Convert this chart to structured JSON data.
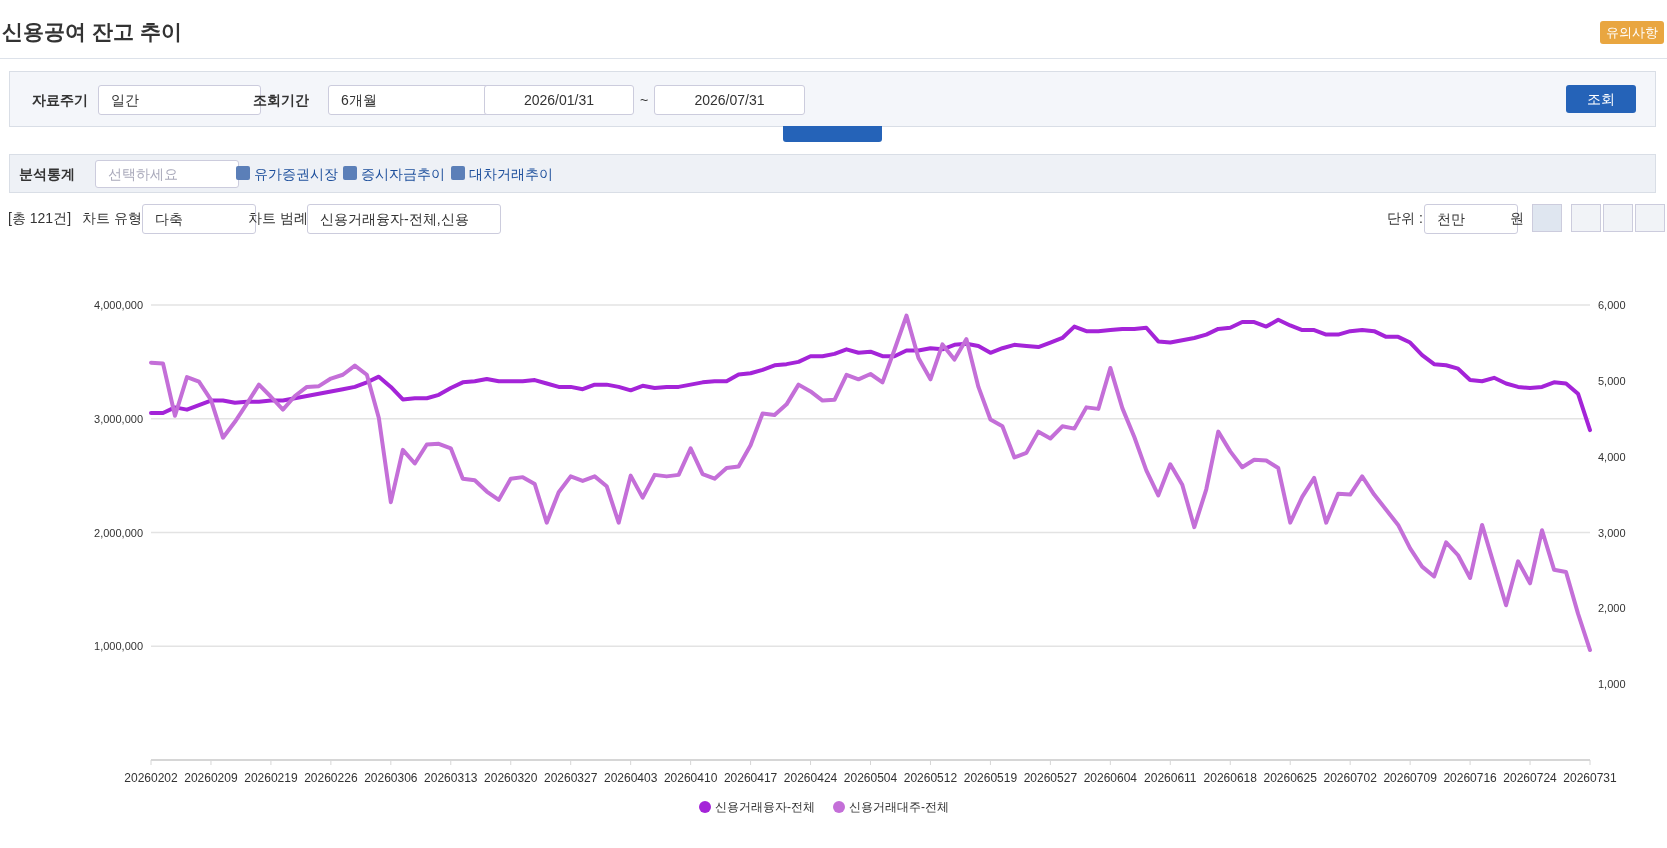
{
  "chart_data": {
    "type": "line",
    "title": "신용공여 잔고 추이",
    "annotations": [
      "유의사항",
      "자료주기",
      "일간",
      "조회기간",
      "6개월",
      "2026/01/31",
      "~",
      "2026/07/31",
      "조회",
      "분석통계",
      "선택하세요",
      "유가증권시장",
      "증시자금추이",
      "대차거래추이",
      "[총 121건]",
      "차트 유형",
      "다축",
      "차트 범례",
      "신용거래융자-전체,신용",
      "단위 :",
      "천만",
      "원"
    ],
    "categories": [
      "20260202",
      null,
      null,
      null,
      null,
      "20260209",
      null,
      null,
      null,
      null,
      "20260219",
      null,
      null,
      null,
      null,
      "20260226",
      null,
      null,
      null,
      null,
      "20260306",
      null,
      null,
      null,
      null,
      "20260313",
      null,
      null,
      null,
      null,
      "20260320",
      null,
      null,
      null,
      null,
      "20260327",
      null,
      null,
      null,
      null,
      "20260403",
      null,
      null,
      null,
      null,
      "20260410",
      null,
      null,
      null,
      null,
      "20260417",
      null,
      null,
      null,
      null,
      "20260424",
      null,
      null,
      null,
      null,
      "20260504",
      null,
      null,
      null,
      null,
      "20260512",
      null,
      null,
      null,
      null,
      "20260519",
      null,
      null,
      null,
      null,
      "20260527",
      null,
      null,
      null,
      null,
      "20260604",
      null,
      null,
      null,
      null,
      "20260611",
      null,
      null,
      null,
      null,
      "20260618",
      null,
      null,
      null,
      null,
      "20260625",
      null,
      null,
      null,
      null,
      "20260702",
      null,
      null,
      null,
      null,
      "20260709",
      null,
      null,
      null,
      null,
      "20260716",
      null,
      null,
      null,
      null,
      "20260724",
      null,
      null,
      null,
      null,
      "20260731"
    ],
    "series": [
      {
        "name": "신용거래융자-전체",
        "color": "#a424d8",
        "values": [
          3050000,
          3050000,
          3100000,
          3080000,
          3120000,
          3160000,
          3160000,
          3140000,
          3150000,
          3150000,
          3160000,
          3160000,
          3180000,
          3200000,
          3220000,
          3240000,
          3260000,
          3280000,
          3320000,
          3370000,
          3280000,
          3170000,
          3180000,
          3180000,
          3210000,
          3270000,
          3320000,
          3330000,
          3350000,
          3330000,
          3330000,
          3330000,
          3340000,
          3310000,
          3280000,
          3280000,
          3260000,
          3300000,
          3300000,
          3280000,
          3250000,
          3290000,
          3270000,
          3280000,
          3280000,
          3300000,
          3320000,
          3330000,
          3330000,
          3390000,
          3400000,
          3430000,
          3470000,
          3480000,
          3500000,
          3550000,
          3550000,
          3570000,
          3610000,
          3580000,
          3590000,
          3550000,
          3550000,
          3600000,
          3600000,
          3620000,
          3610000,
          3650000,
          3660000,
          3640000,
          3580000,
          3620000,
          3650000,
          3640000,
          3630000,
          3670000,
          3710000,
          3810000,
          3770000,
          3770000,
          3780000,
          3790000,
          3790000,
          3800000,
          3680000,
          3670000,
          3690000,
          3710000,
          3740000,
          3790000,
          3800000,
          3850000,
          3850000,
          3810000,
          3870000,
          3820000,
          3780000,
          3780000,
          3740000,
          3740000,
          3770000,
          3780000,
          3770000,
          3720000,
          3720000,
          3670000,
          3560000,
          3480000,
          3470000,
          3440000,
          3340000,
          3330000,
          3360000,
          3310000,
          3280000,
          3270000,
          3280000,
          3320000,
          3310000,
          3220000,
          2900000
        ]
      },
      {
        "name": "신용거래대주-전체",
        "color": "#c46fd8",
        "axis": "y2",
        "values": [
          5240,
          5230,
          4540,
          5050,
          4990,
          4750,
          4250,
          4460,
          4700,
          4950,
          4790,
          4620,
          4800,
          4920,
          4930,
          5030,
          5080,
          5200,
          5080,
          4510,
          3400,
          4090,
          3910,
          4160,
          4170,
          4110,
          3710,
          3690,
          3540,
          3430,
          3710,
          3730,
          3640,
          3130,
          3530,
          3740,
          3680,
          3740,
          3610,
          3130,
          3750,
          3460,
          3760,
          3740,
          3760,
          4110,
          3770,
          3710,
          3850,
          3870,
          4150,
          4570,
          4550,
          4690,
          4950,
          4860,
          4740,
          4750,
          5080,
          5020,
          5090,
          4980,
          5410,
          5860,
          5300,
          5020,
          5480,
          5280,
          5550,
          4920,
          4490,
          4400,
          3990,
          4050,
          4330,
          4240,
          4400,
          4370,
          4650,
          4630,
          5170,
          4640,
          4260,
          3820,
          3490,
          3900,
          3630,
          3070,
          3570,
          4330,
          4070,
          3860,
          3960,
          3950,
          3850,
          3130,
          3470,
          3720,
          3130,
          3510,
          3500,
          3740,
          3500,
          3300,
          3100,
          2790,
          2550,
          2420,
          2870,
          2700,
          2400,
          3100,
          2570,
          2040,
          2620,
          2330,
          3030,
          2510,
          2480,
          1930,
          1450
        ]
      }
    ],
    "ylim": [
      0,
      4000000
    ],
    "yticks": [
      {
        "value": 1000000,
        "label": "1,000,000"
      },
      {
        "value": 2000000,
        "label": "2,000,000"
      },
      {
        "value": 3000000,
        "label": "3,000,000"
      },
      {
        "value": 4000000,
        "label": "4,000,000"
      }
    ],
    "y2lim": [
      0,
      6000
    ],
    "y2ticks": [
      {
        "value": 1000,
        "label": "1,000"
      },
      {
        "value": 2000,
        "label": "2,000"
      },
      {
        "value": 3000,
        "label": "3,000"
      },
      {
        "value": 4000,
        "label": "4,000"
      },
      {
        "value": 5000,
        "label": "5,000"
      },
      {
        "value": 6000,
        "label": "6,000"
      }
    ],
    "grid": "y",
    "legend": "bottom"
  }
}
